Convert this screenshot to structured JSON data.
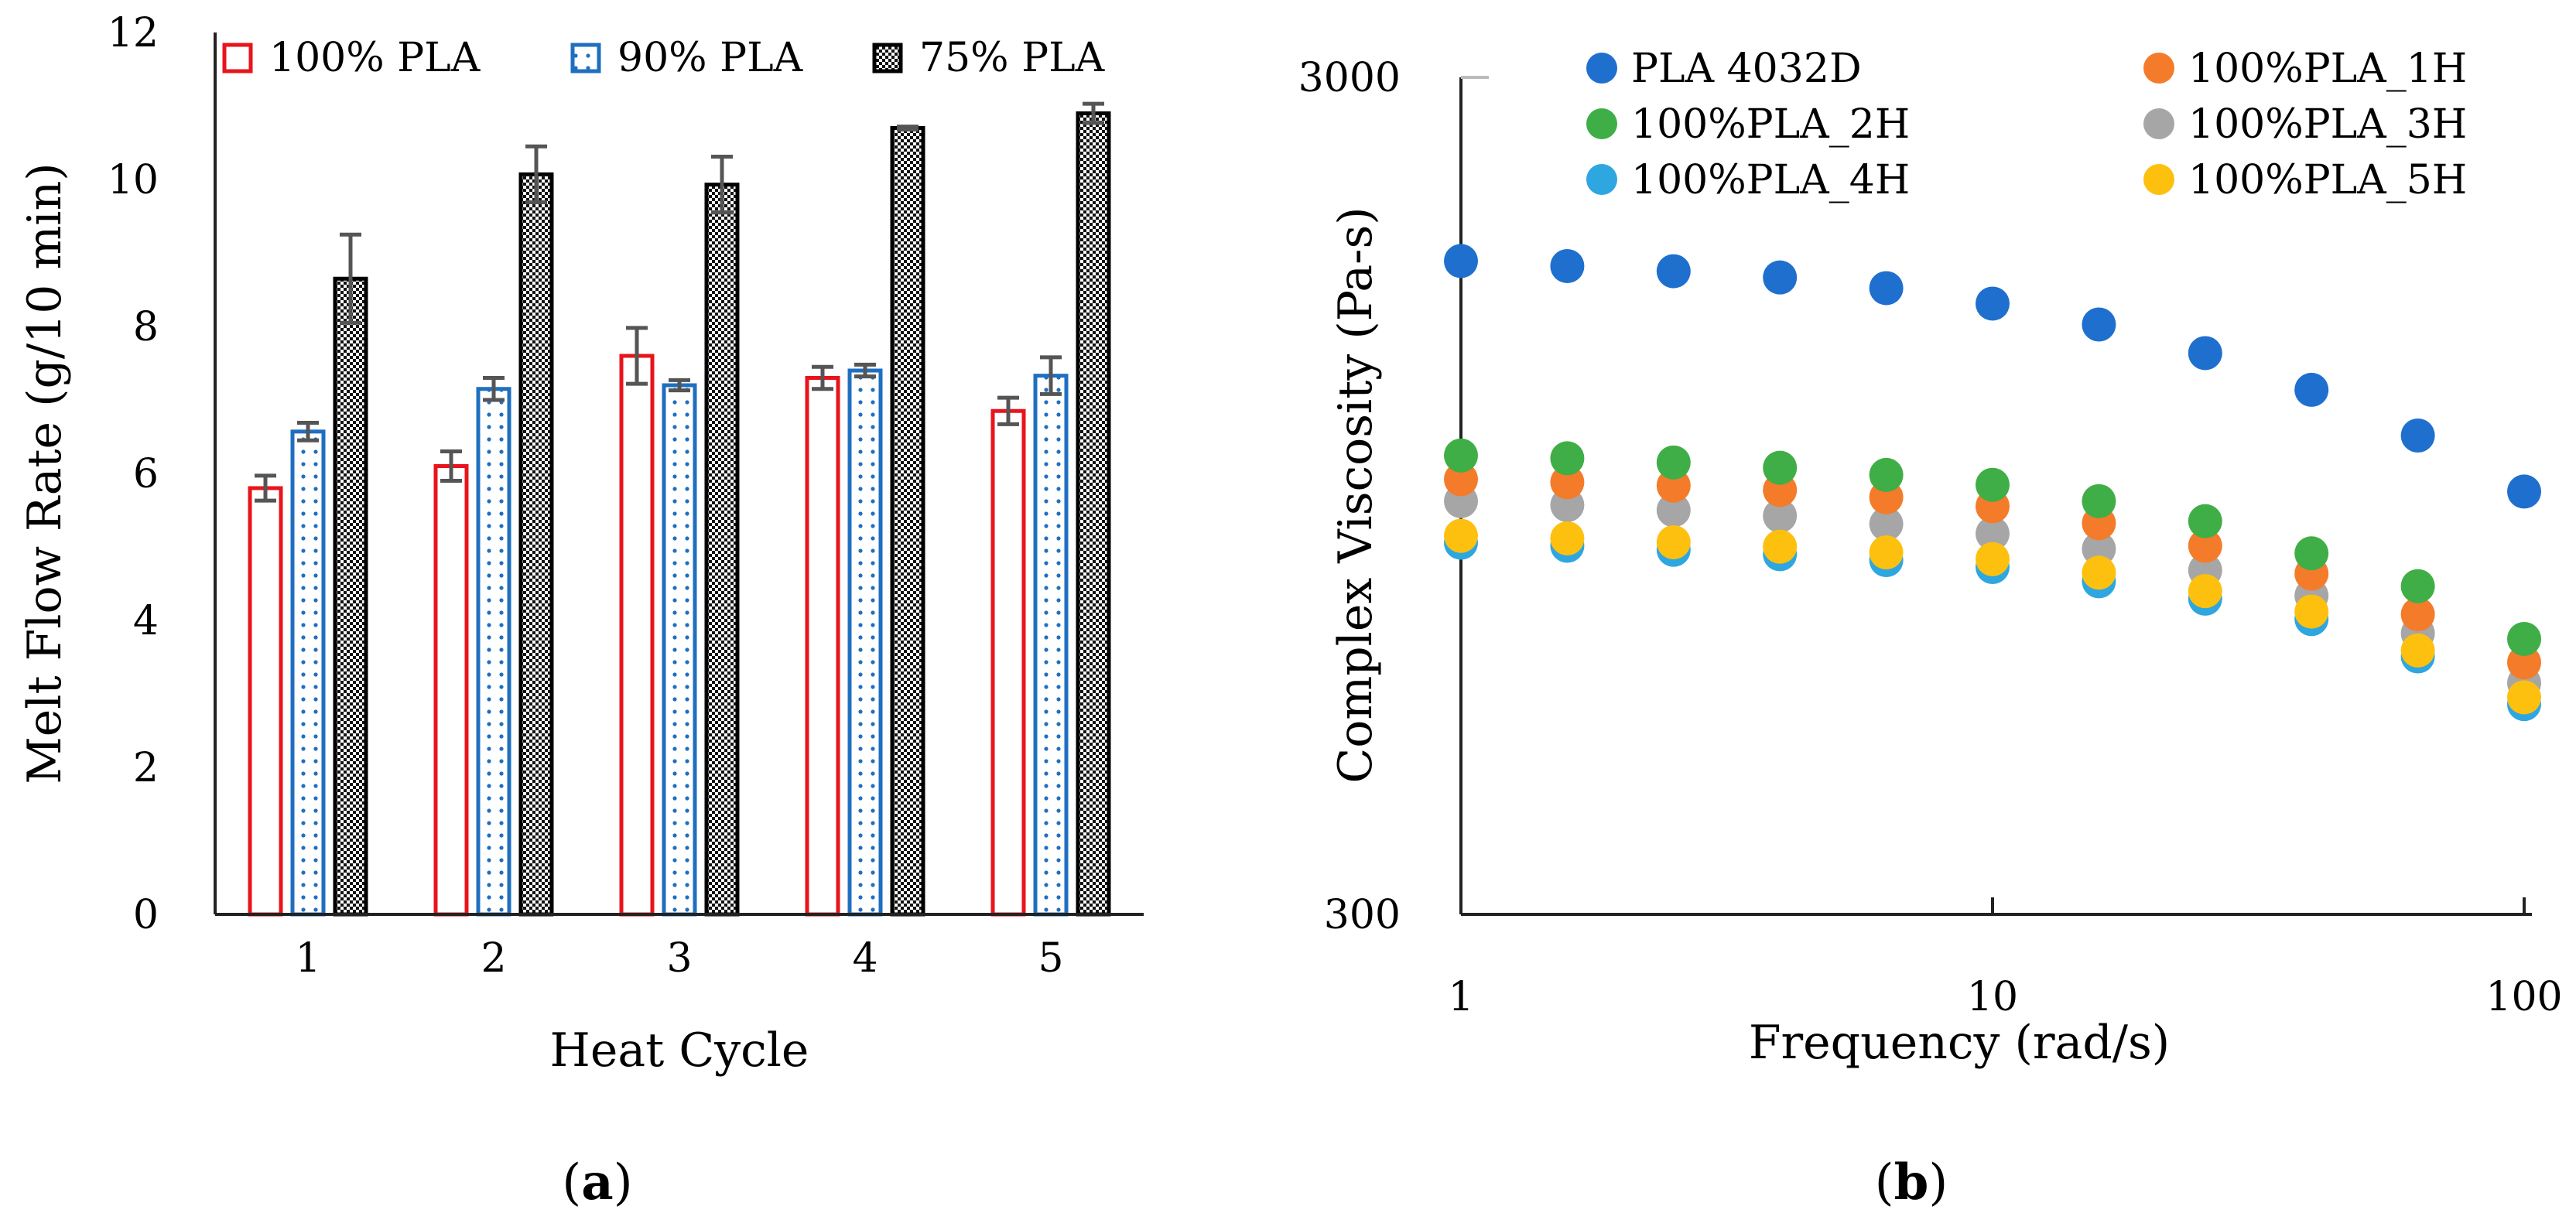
{
  "chart_data": [
    {
      "type": "bar",
      "panel_label": "(a)",
      "panel_letter": "a",
      "xlabel": "Heat Cycle",
      "ylabel": "Melt Flow Rate (g/10 min)",
      "ylim": [
        0,
        12
      ],
      "yticks": [
        0,
        2,
        4,
        6,
        8,
        10,
        12
      ],
      "categories": [
        "1",
        "2",
        "3",
        "4",
        "5"
      ],
      "legend_position": "top",
      "series": [
        {
          "name": "100% PLA",
          "pattern": "solid",
          "color": "#e8141c",
          "values": [
            5.8,
            6.1,
            7.6,
            7.3,
            6.85
          ],
          "errors": [
            0.17,
            0.2,
            0.38,
            0.15,
            0.18
          ]
        },
        {
          "name": "90% PLA",
          "pattern": "dots",
          "color": "#1f6fc0",
          "values": [
            6.57,
            7.15,
            7.2,
            7.4,
            7.33
          ],
          "errors": [
            0.12,
            0.15,
            0.07,
            0.08,
            0.25
          ]
        },
        {
          "name": "75% PLA",
          "pattern": "checker",
          "color": "#000000",
          "values": [
            8.65,
            10.07,
            9.93,
            10.7,
            10.9
          ],
          "errors": [
            0.6,
            0.38,
            0.38,
            0.02,
            0.13
          ]
        }
      ]
    },
    {
      "type": "scatter",
      "panel_label": "(b)",
      "panel_letter": "b",
      "xlabel": "Frequency (rad/s)",
      "ylabel": "Complex Viscosity (Pa-s)",
      "xscale": "log",
      "yscale": "log",
      "xlim": [
        1,
        100
      ],
      "ylim": [
        300,
        3000
      ],
      "xticks": [
        1,
        10,
        100
      ],
      "yticks": [
        300,
        3000
      ],
      "legend_position": "top",
      "x": [
        1,
        1.585,
        2.512,
        3.981,
        6.31,
        10,
        15.85,
        25.12,
        39.81,
        63.1,
        100
      ],
      "series": [
        {
          "name": "PLA 4032D",
          "color": "#1f6fcf",
          "values": [
            1810,
            1785,
            1760,
            1730,
            1680,
            1610,
            1520,
            1405,
            1270,
            1120,
            960
          ]
        },
        {
          "name": "100%PLA_1H",
          "color": "#f47b2a",
          "values": [
            993,
            985,
            976,
            964,
            945,
            922,
            880,
            827,
            766,
            685,
            600
          ]
        },
        {
          "name": "100%PLA_2H",
          "color": "#3fae46",
          "values": [
            1060,
            1052,
            1040,
            1025,
            1005,
            978,
            935,
            885,
            810,
            740,
            640
          ]
        },
        {
          "name": "100%PLA_3H",
          "color": "#a6a6a6",
          "values": [
            935,
            925,
            912,
            898,
            878,
            855,
            820,
            773,
            721,
            650,
            567
          ]
        },
        {
          "name": "100%PLA_4H",
          "color": "#2ea6e0",
          "values": [
            834,
            827,
            818,
            808,
            795,
            780,
            750,
            715,
            676,
            610,
            535
          ]
        },
        {
          "name": "100%PLA_5H",
          "color": "#fdc00f",
          "values": [
            850,
            844,
            835,
            825,
            812,
            797,
            768,
            730,
            690,
            620,
            545
          ]
        }
      ]
    }
  ]
}
